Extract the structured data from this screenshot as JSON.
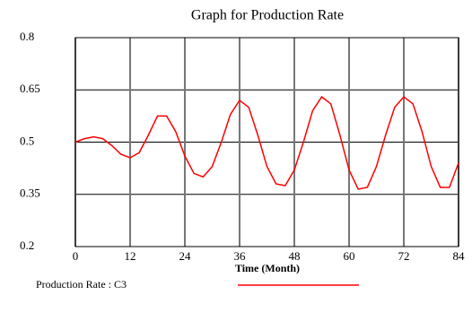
{
  "chart_data": {
    "type": "line",
    "title": "Graph for Production Rate",
    "x_label": "Time (Month)",
    "x": [
      0,
      2,
      4,
      6,
      8,
      10,
      12,
      14,
      16,
      18,
      20,
      22,
      24,
      26,
      28,
      30,
      32,
      34,
      36,
      38,
      40,
      42,
      44,
      46,
      48,
      50,
      52,
      54,
      56,
      58,
      60,
      62,
      64,
      66,
      68,
      70,
      72,
      74,
      76,
      78,
      80,
      82,
      84
    ],
    "series": [
      {
        "name": "Production Rate : C3",
        "color": "#ff0000",
        "values": [
          0.5,
          0.51,
          0.515,
          0.51,
          0.49,
          0.465,
          0.455,
          0.47,
          0.52,
          0.575,
          0.575,
          0.53,
          0.46,
          0.41,
          0.4,
          0.43,
          0.5,
          0.58,
          0.62,
          0.6,
          0.52,
          0.43,
          0.38,
          0.375,
          0.42,
          0.5,
          0.59,
          0.63,
          0.61,
          0.52,
          0.42,
          0.365,
          0.37,
          0.43,
          0.52,
          0.6,
          0.63,
          0.61,
          0.53,
          0.43,
          0.37,
          0.37,
          0.44
        ]
      }
    ],
    "xlim": [
      0,
      84
    ],
    "xticks": [
      0,
      12,
      24,
      36,
      48,
      60,
      72,
      84
    ],
    "ylim": [
      0.2,
      0.8
    ],
    "yticks": [
      0.2,
      0.35,
      0.5,
      0.65,
      0.8
    ],
    "grid": true
  }
}
